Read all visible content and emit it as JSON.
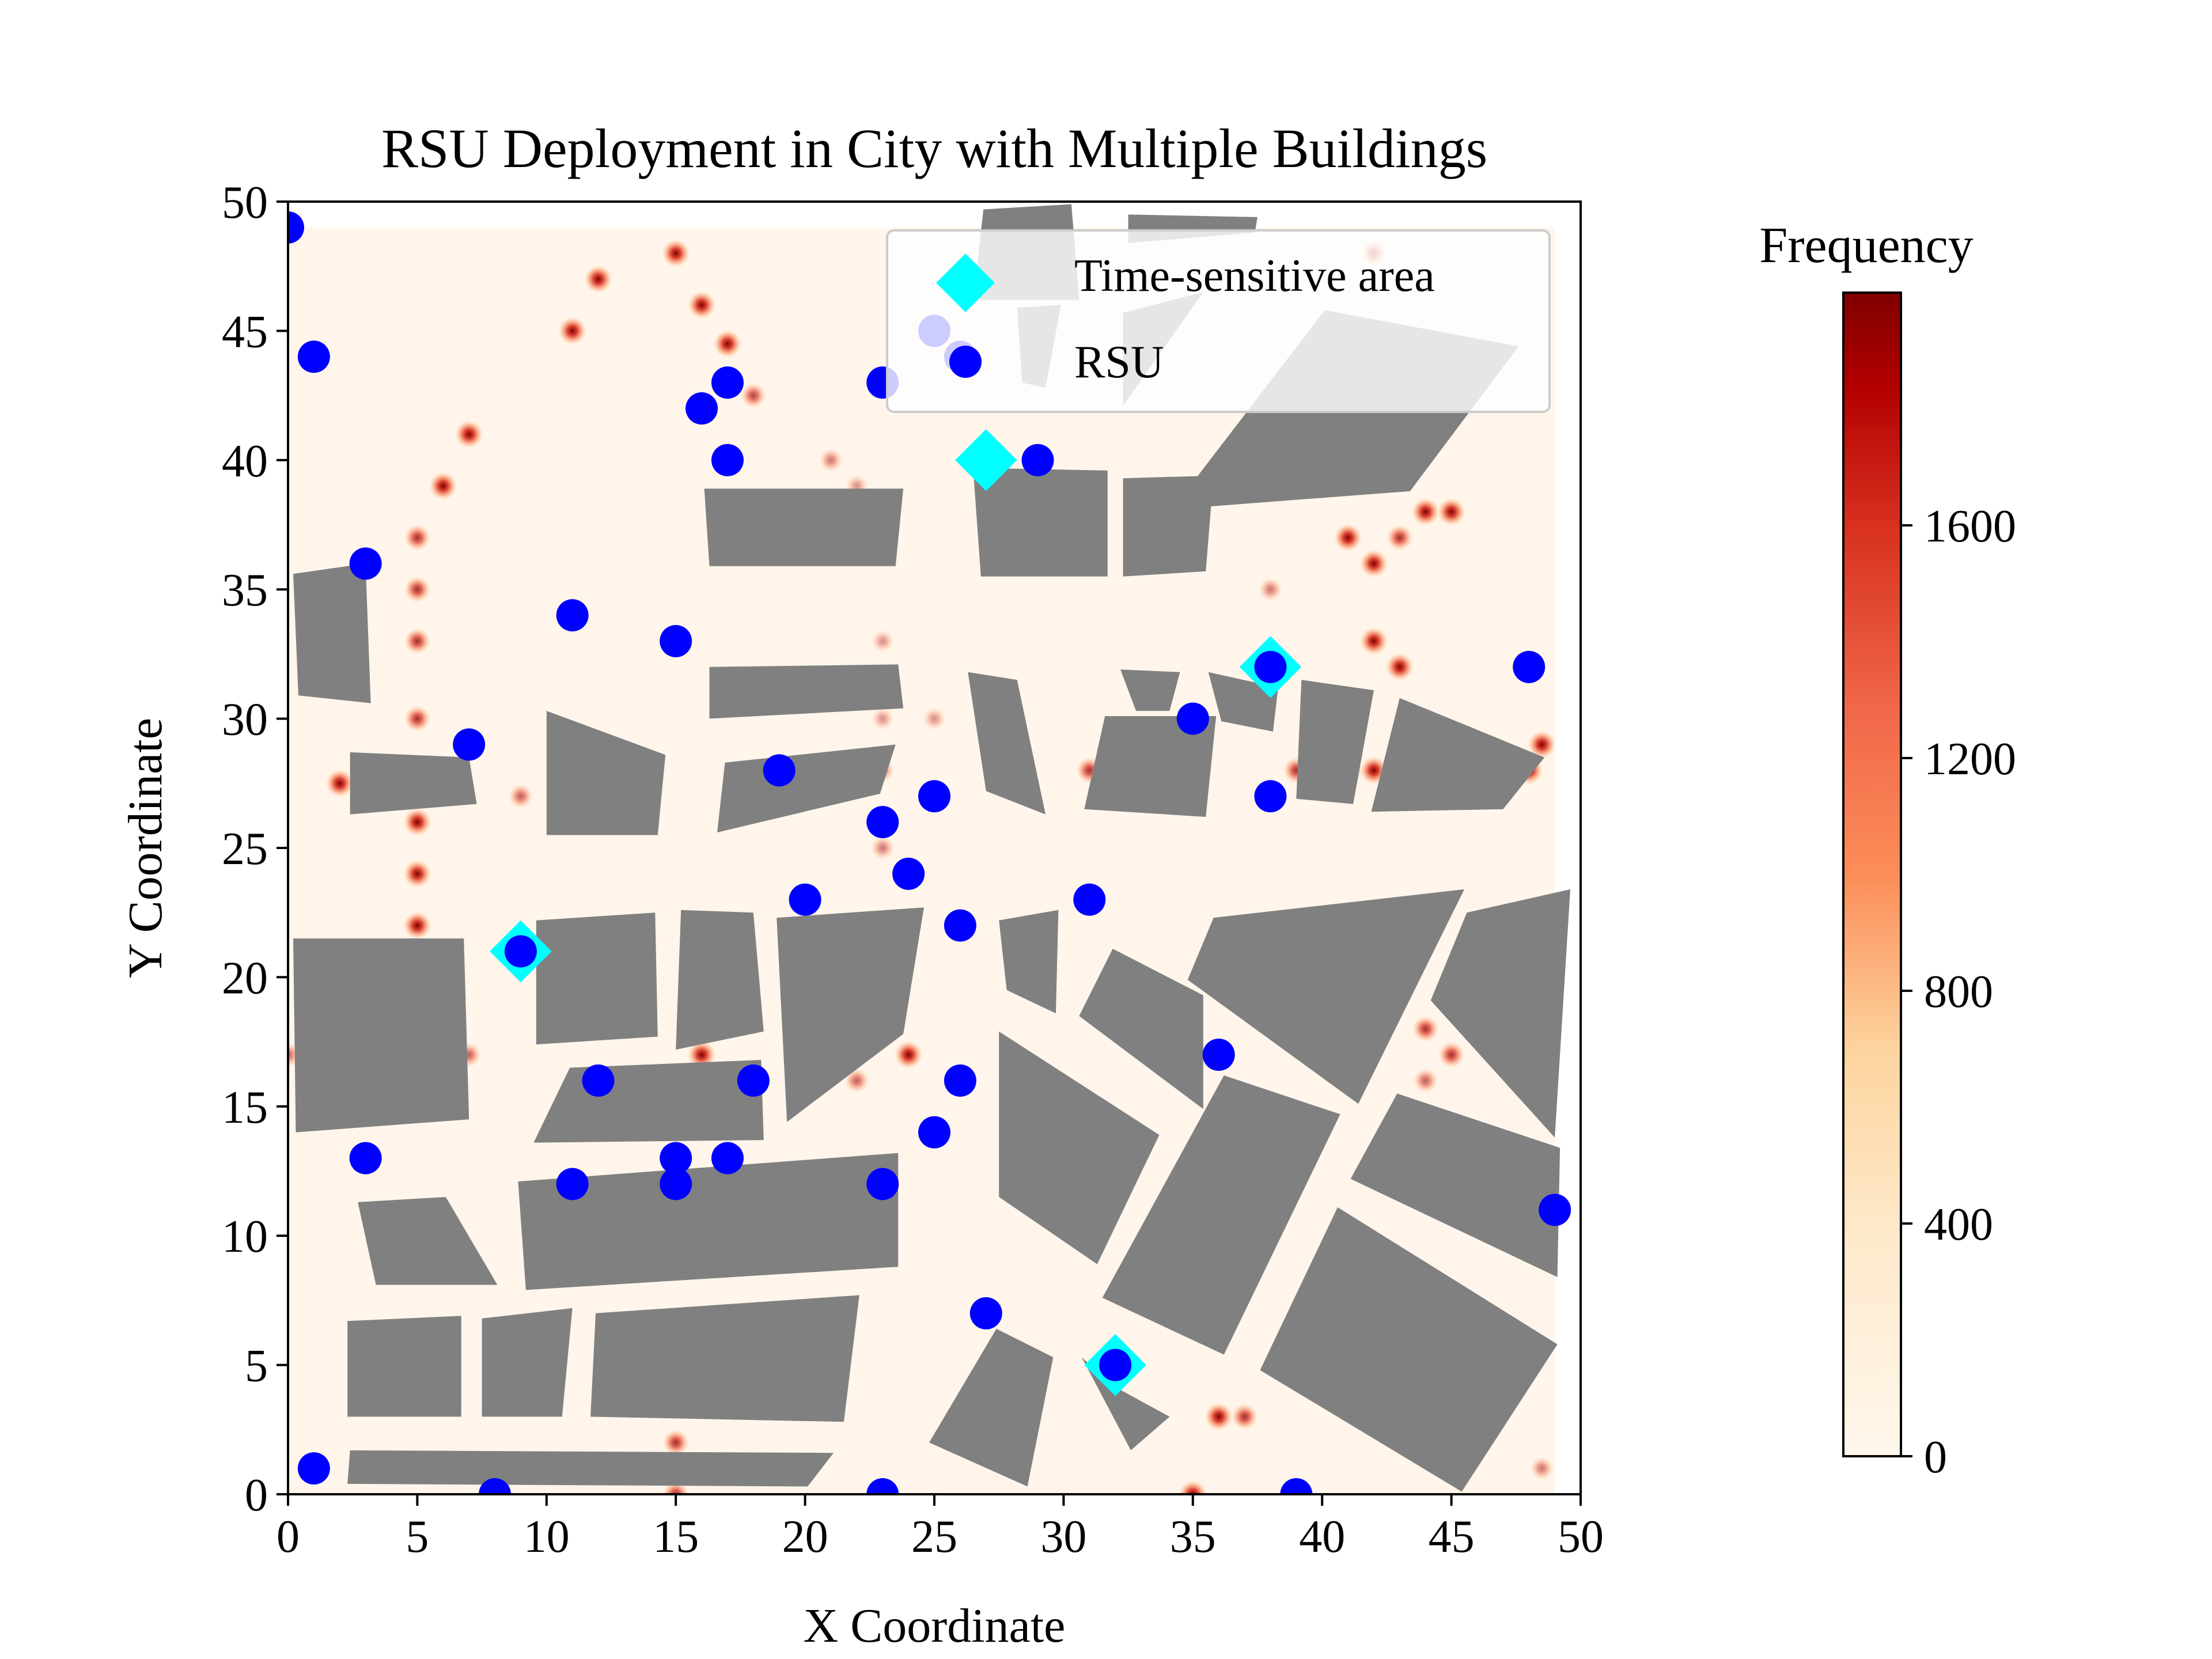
{
  "colors": {
    "building": "#808080",
    "rsu": "#0000ff",
    "time_sensitive": "#00ffff",
    "heat_background": "#fff5eb",
    "axis": "#000000",
    "legend_bg": "#ffffff",
    "legend_border": "#cccccc"
  },
  "chart_data": {
    "type": "scatter",
    "title": "RSU Deployment in City with Multiple Buildings",
    "xlabel": "X Coordinate",
    "ylabel": "Y Coordinate",
    "xlim": [
      0,
      50
    ],
    "ylim": [
      0,
      50
    ],
    "xticks": [
      0,
      5,
      10,
      15,
      20,
      25,
      30,
      35,
      40,
      45,
      50
    ],
    "yticks": [
      0,
      5,
      10,
      15,
      20,
      25,
      30,
      35,
      40,
      45,
      50
    ],
    "legend": {
      "placement": "upper right",
      "entries": [
        {
          "label": "Time-sensitive area",
          "marker": "diamond"
        },
        {
          "label": "RSU",
          "marker": "circle"
        }
      ]
    },
    "colorbar": {
      "title": "Frequency",
      "cmap": "OrRd",
      "range": [
        0,
        2000
      ],
      "ticks": [
        0,
        400,
        800,
        1200,
        1600
      ]
    },
    "series": [
      {
        "name": "Time-sensitive area",
        "marker": "diamond",
        "points": [
          [
            27,
            40
          ],
          [
            38,
            32
          ],
          [
            9,
            21
          ],
          [
            32,
            5
          ]
        ]
      },
      {
        "name": "RSU",
        "marker": "circle",
        "points": [
          [
            0,
            49
          ],
          [
            1,
            44
          ],
          [
            3,
            36
          ],
          [
            7,
            29
          ],
          [
            11,
            34
          ],
          [
            15,
            33
          ],
          [
            16,
            42
          ],
          [
            17,
            43
          ],
          [
            17,
            40
          ],
          [
            23,
            43
          ],
          [
            25,
            45
          ],
          [
            26,
            44
          ],
          [
            29,
            40
          ],
          [
            19,
            28
          ],
          [
            23,
            26
          ],
          [
            25,
            27
          ],
          [
            24,
            24
          ],
          [
            20,
            23
          ],
          [
            26,
            22
          ],
          [
            31,
            23
          ],
          [
            35,
            30
          ],
          [
            38,
            32
          ],
          [
            38,
            27
          ],
          [
            48,
            32
          ],
          [
            9,
            21
          ],
          [
            12,
            16
          ],
          [
            18,
            16
          ],
          [
            26,
            16
          ],
          [
            25,
            14
          ],
          [
            36,
            17
          ],
          [
            3,
            13
          ],
          [
            11,
            12
          ],
          [
            15,
            13
          ],
          [
            15,
            12
          ],
          [
            17,
            13
          ],
          [
            23,
            12
          ],
          [
            49,
            11
          ],
          [
            27,
            7
          ],
          [
            32,
            5
          ],
          [
            1,
            1
          ],
          [
            8,
            0
          ],
          [
            23,
            0
          ],
          [
            39,
            0
          ]
        ]
      }
    ],
    "buildings": [
      [
        [
          0.2,
          35.6
        ],
        [
          3,
          36
        ],
        [
          3.2,
          30.6
        ],
        [
          0.4,
          30.9
        ]
      ],
      [
        [
          2.4,
          28.7
        ],
        [
          7,
          28.5
        ],
        [
          7.3,
          26.7
        ],
        [
          2.4,
          26.3
        ]
      ],
      [
        [
          10,
          30.3
        ],
        [
          14.6,
          28.6
        ],
        [
          14.3,
          25.5
        ],
        [
          10,
          25.5
        ]
      ],
      [
        [
          0.2,
          21.5
        ],
        [
          6.8,
          21.5
        ],
        [
          7,
          14.5
        ],
        [
          0.3,
          14
        ]
      ],
      [
        [
          9.6,
          22.2
        ],
        [
          14.2,
          22.5
        ],
        [
          14.3,
          17.7
        ],
        [
          9.6,
          17.4
        ]
      ],
      [
        [
          15.2,
          22.6
        ],
        [
          18,
          22.5
        ],
        [
          18.4,
          17.9
        ],
        [
          15,
          17.2
        ]
      ],
      [
        [
          18.9,
          22.3
        ],
        [
          24.6,
          22.7
        ],
        [
          23.8,
          17.8
        ],
        [
          19.3,
          14.4
        ]
      ],
      [
        [
          10.9,
          16.5
        ],
        [
          18.3,
          16.8
        ],
        [
          18.4,
          13.7
        ],
        [
          9.5,
          13.6
        ]
      ],
      [
        [
          2.7,
          11.3
        ],
        [
          6.1,
          11.5
        ],
        [
          8.1,
          8.1
        ],
        [
          3.4,
          8.1
        ]
      ],
      [
        [
          8.9,
          12.1
        ],
        [
          23.6,
          13.2
        ],
        [
          23.6,
          8.8
        ],
        [
          9.2,
          7.9
        ]
      ],
      [
        [
          2.3,
          6.7
        ],
        [
          6.7,
          6.9
        ],
        [
          6.7,
          3
        ],
        [
          2.3,
          3
        ]
      ],
      [
        [
          7.5,
          6.8
        ],
        [
          11,
          7.2
        ],
        [
          10.6,
          3
        ],
        [
          7.5,
          3
        ]
      ],
      [
        [
          11.9,
          7
        ],
        [
          22.1,
          7.7
        ],
        [
          21.5,
          2.8
        ],
        [
          11.7,
          3
        ]
      ],
      [
        [
          2.4,
          1.7
        ],
        [
          21.1,
          1.6
        ],
        [
          20.1,
          0.3
        ],
        [
          2.3,
          0.4
        ]
      ],
      [
        [
          16.1,
          38.9
        ],
        [
          23.8,
          38.9
        ],
        [
          23.5,
          35.9
        ],
        [
          16.3,
          35.9
        ]
      ],
      [
        [
          16.3,
          32
        ],
        [
          23.6,
          32.1
        ],
        [
          23.8,
          30.4
        ],
        [
          16.3,
          30
        ]
      ],
      [
        [
          16.9,
          28.3
        ],
        [
          23.5,
          29
        ],
        [
          22.9,
          27.1
        ],
        [
          16.6,
          25.6
        ]
      ],
      [
        [
          26.5,
          39.7
        ],
        [
          31.7,
          39.6
        ],
        [
          31.7,
          35.5
        ],
        [
          26.8,
          35.5
        ]
      ],
      [
        [
          32.3,
          39.3
        ],
        [
          35.8,
          39.4
        ],
        [
          35.5,
          35.7
        ],
        [
          32.3,
          35.5
        ]
      ],
      [
        [
          26.3,
          31.8
        ],
        [
          28.2,
          31.5
        ],
        [
          29.3,
          26.3
        ],
        [
          27,
          27.2
        ]
      ],
      [
        [
          32.2,
          31.9
        ],
        [
          34.5,
          31.8
        ],
        [
          34.1,
          30.3
        ],
        [
          32.8,
          30.3
        ]
      ],
      [
        [
          35.6,
          31.8
        ],
        [
          38.3,
          31.2
        ],
        [
          38.1,
          29.5
        ],
        [
          36.1,
          29.9
        ]
      ],
      [
        [
          39.2,
          31.5
        ],
        [
          42,
          31.1
        ],
        [
          41.2,
          26.7
        ],
        [
          39,
          26.9
        ]
      ],
      [
        [
          31.6,
          30.1
        ],
        [
          35.9,
          30.1
        ],
        [
          35.5,
          26.2
        ],
        [
          30.8,
          26.5
        ]
      ],
      [
        [
          43,
          30.8
        ],
        [
          48.6,
          28.5
        ],
        [
          47,
          26.5
        ],
        [
          41.9,
          26.4
        ]
      ],
      [
        [
          34.2,
          38.1
        ],
        [
          40.1,
          45.8
        ],
        [
          47.6,
          44.4
        ],
        [
          43.4,
          38.8
        ]
      ],
      [
        [
          27.5,
          22.2
        ],
        [
          29.8,
          22.6
        ],
        [
          29.7,
          18.6
        ],
        [
          27.8,
          19.5
        ]
      ],
      [
        [
          31.9,
          21.1
        ],
        [
          35.4,
          19.3
        ],
        [
          35.4,
          14.9
        ],
        [
          30.6,
          18.5
        ]
      ],
      [
        [
          35.8,
          22.3
        ],
        [
          45.5,
          23.4
        ],
        [
          41.4,
          15.1
        ],
        [
          34.8,
          19.9
        ]
      ],
      [
        [
          45.6,
          22.5
        ],
        [
          49.6,
          23.4
        ],
        [
          49,
          13.8
        ],
        [
          44.2,
          19.1
        ]
      ],
      [
        [
          27.5,
          17.9
        ],
        [
          33.7,
          13.9
        ],
        [
          31.3,
          8.9
        ],
        [
          27.5,
          11.5
        ]
      ],
      [
        [
          36.2,
          16.2
        ],
        [
          40.7,
          14.7
        ],
        [
          36.2,
          5.4
        ],
        [
          31.5,
          7.6
        ]
      ],
      [
        [
          42.9,
          15.5
        ],
        [
          49.2,
          13.4
        ],
        [
          49.1,
          8.4
        ],
        [
          41.1,
          12.2
        ]
      ],
      [
        [
          40.6,
          11.1
        ],
        [
          49.1,
          5.8
        ],
        [
          45.4,
          0.1
        ],
        [
          37.6,
          4.8
        ]
      ],
      [
        [
          27.4,
          6.4
        ],
        [
          29.6,
          5.3
        ],
        [
          28.6,
          0.3
        ],
        [
          24.8,
          2
        ]
      ],
      [
        [
          30.7,
          5.3
        ],
        [
          31.9,
          4.2
        ],
        [
          34.1,
          3
        ],
        [
          32.6,
          1.7
        ]
      ],
      [
        [
          26.9,
          49.7
        ],
        [
          30.3,
          49.9
        ],
        [
          30.6,
          46.2
        ],
        [
          26.5,
          46.2
        ]
      ],
      [
        [
          32.5,
          49.5
        ],
        [
          37.5,
          49.4
        ],
        [
          37.4,
          48.8
        ],
        [
          32.5,
          48.4
        ]
      ],
      [
        [
          28.2,
          45.9
        ],
        [
          29.9,
          46
        ],
        [
          29.3,
          42.8
        ],
        [
          28.4,
          43
        ]
      ],
      [
        [
          32.3,
          45.7
        ],
        [
          35.4,
          46.5
        ],
        [
          32.3,
          42.1
        ]
      ]
    ],
    "hotspots": [
      [
        12,
        47,
        1
      ],
      [
        11,
        45,
        1
      ],
      [
        15,
        48,
        1
      ],
      [
        16,
        46,
        1
      ],
      [
        17,
        44.5,
        1
      ],
      [
        18,
        42.5,
        0.7
      ],
      [
        7,
        41,
        1
      ],
      [
        6,
        39,
        1
      ],
      [
        5,
        37,
        0.8
      ],
      [
        5,
        35,
        0.8
      ],
      [
        5,
        33,
        0.8
      ],
      [
        5,
        30,
        0.8
      ],
      [
        5,
        28,
        0.8
      ],
      [
        5,
        26,
        1
      ],
      [
        5,
        24,
        1
      ],
      [
        5,
        22,
        1
      ],
      [
        2,
        27.5,
        1
      ],
      [
        9,
        27,
        0.6
      ],
      [
        21,
        40,
        0.5
      ],
      [
        22,
        39,
        0.4
      ],
      [
        23,
        33,
        0.4
      ],
      [
        23,
        30,
        0.4
      ],
      [
        23,
        28,
        0.5
      ],
      [
        23,
        25,
        0.5
      ],
      [
        24,
        22,
        0.5
      ],
      [
        24,
        17,
        1
      ],
      [
        22,
        16,
        0.6
      ],
      [
        16,
        17,
        1
      ],
      [
        7,
        17,
        0.6
      ],
      [
        0,
        17,
        0.6
      ],
      [
        41,
        37,
        1
      ],
      [
        42,
        36,
        1
      ],
      [
        43,
        37,
        0.8
      ],
      [
        44,
        38,
        1
      ],
      [
        45,
        38,
        1
      ],
      [
        42,
        33,
        1
      ],
      [
        43,
        32,
        1
      ],
      [
        42,
        48,
        0.8
      ],
      [
        38,
        35,
        0.5
      ],
      [
        39,
        28,
        0.8
      ],
      [
        41,
        28,
        1
      ],
      [
        42,
        28,
        1
      ],
      [
        43,
        27,
        1
      ],
      [
        48.5,
        29,
        1
      ],
      [
        48,
        28,
        1
      ],
      [
        31,
        28,
        0.8
      ],
      [
        40,
        17,
        0.6
      ],
      [
        44,
        18,
        0.8
      ],
      [
        45,
        17,
        0.8
      ],
      [
        44,
        16,
        0.6
      ],
      [
        45,
        14,
        0.5
      ],
      [
        36,
        3,
        1
      ],
      [
        37,
        3,
        0.8
      ],
      [
        35,
        0,
        1
      ],
      [
        15,
        2,
        0.8
      ],
      [
        15,
        0,
        0.8
      ],
      [
        48.5,
        1,
        0.5
      ],
      [
        20,
        28,
        0.5
      ],
      [
        18,
        28,
        0.5
      ],
      [
        25,
        30,
        0.4
      ],
      [
        22,
        12,
        0.4
      ]
    ]
  }
}
